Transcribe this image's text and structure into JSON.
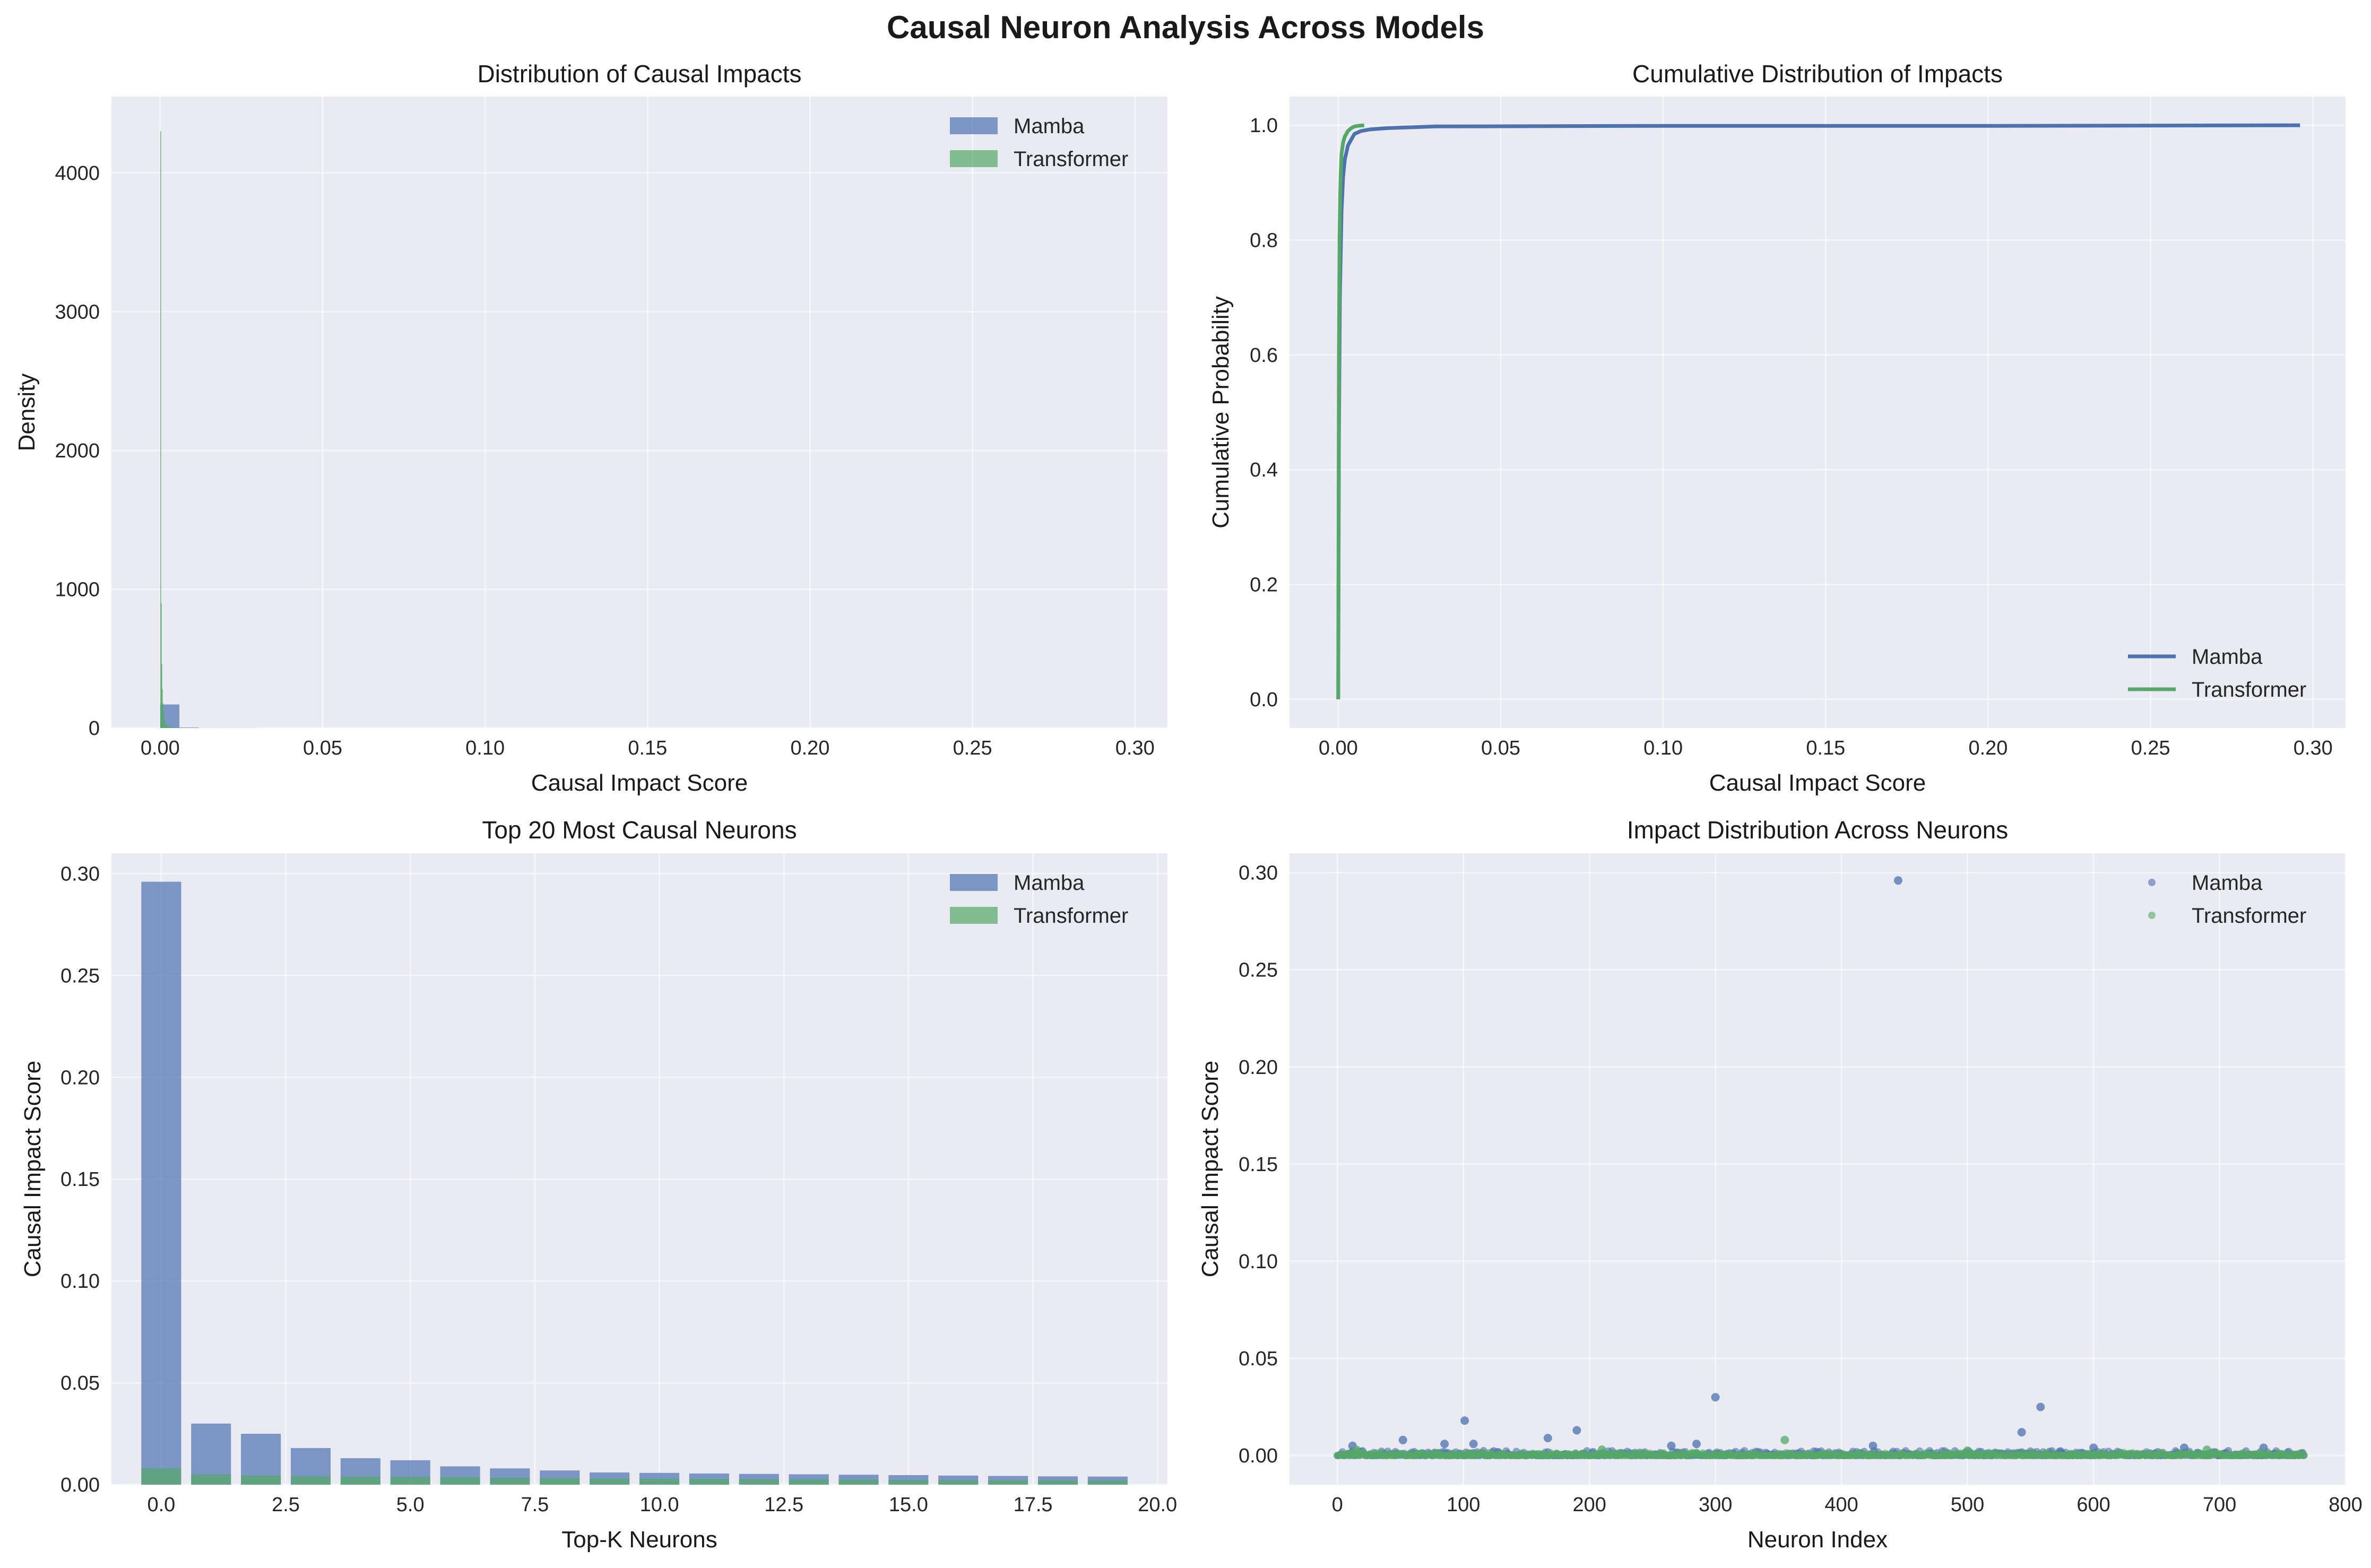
{
  "figure": {
    "title": "Causal Neuron Analysis Across Models"
  },
  "colors": {
    "mamba": "#4c72b0",
    "transformer": "#55a868",
    "plot_bg": "#eaeaf2"
  },
  "chart_data": [
    {
      "id": "hist",
      "type": "bar",
      "title": "Distribution of Causal Impacts",
      "xlabel": "Causal Impact Score",
      "ylabel": "Density",
      "xlim": [
        -0.015,
        0.31
      ],
      "ylim": [
        0,
        4550
      ],
      "xticks": [
        0.0,
        0.05,
        0.1,
        0.15,
        0.2,
        0.25,
        0.3
      ],
      "xtick_labels": [
        "0.00",
        "0.05",
        "0.10",
        "0.15",
        "0.20",
        "0.25",
        "0.30"
      ],
      "yticks": [
        0,
        1000,
        2000,
        3000,
        4000
      ],
      "ytick_labels": [
        "0",
        "1000",
        "2000",
        "3000",
        "4000"
      ],
      "grid": true,
      "legend": "top-right",
      "series": [
        {
          "name": "Mamba",
          "color": "#4c72b0",
          "bin_edges": [
            0.0,
            0.00592,
            0.01184,
            0.01776,
            0.02368,
            0.0296
          ],
          "values": [
            170,
            4,
            1,
            0.5,
            1
          ]
        },
        {
          "name": "Transformer",
          "color": "#55a868",
          "bin_edges": [
            0.0,
            0.00016,
            0.00032,
            0.00048,
            0.00064,
            0.0008,
            0.001,
            0.0012,
            0.0016,
            0.0024,
            0.004,
            0.008
          ],
          "values": [
            4300,
            900,
            460,
            280,
            180,
            120,
            80,
            50,
            25,
            10,
            3
          ]
        }
      ]
    },
    {
      "id": "cdf",
      "type": "line",
      "title": "Cumulative Distribution of Impacts",
      "xlabel": "Causal Impact Score",
      "ylabel": "Cumulative Probability",
      "xlim": [
        -0.015,
        0.31
      ],
      "ylim": [
        -0.05,
        1.05
      ],
      "xticks": [
        0.0,
        0.05,
        0.1,
        0.15,
        0.2,
        0.25,
        0.3
      ],
      "xtick_labels": [
        "0.00",
        "0.05",
        "0.10",
        "0.15",
        "0.20",
        "0.25",
        "0.30"
      ],
      "yticks": [
        0.0,
        0.2,
        0.4,
        0.6,
        0.8,
        1.0
      ],
      "ytick_labels": [
        "0.0",
        "0.2",
        "0.4",
        "0.6",
        "0.8",
        "1.0"
      ],
      "grid": true,
      "legend": "bottom-right",
      "series": [
        {
          "name": "Mamba",
          "color": "#4c72b0",
          "x": [
            0.0,
            0.0002,
            0.0005,
            0.001,
            0.0015,
            0.002,
            0.003,
            0.004,
            0.005,
            0.007,
            0.01,
            0.015,
            0.02,
            0.03,
            0.1,
            0.2,
            0.296
          ],
          "y": [
            0.0,
            0.45,
            0.7,
            0.85,
            0.91,
            0.94,
            0.965,
            0.975,
            0.985,
            0.99,
            0.993,
            0.995,
            0.996,
            0.998,
            0.999,
            0.999,
            1.0
          ]
        },
        {
          "name": "Transformer",
          "color": "#55a868",
          "x": [
            0.0,
            0.0002,
            0.0004,
            0.0006,
            0.0008,
            0.001,
            0.0015,
            0.002,
            0.003,
            0.004,
            0.005,
            0.006,
            0.008
          ],
          "y": [
            0.0,
            0.6,
            0.8,
            0.88,
            0.92,
            0.95,
            0.97,
            0.98,
            0.99,
            0.995,
            0.998,
            0.999,
            1.0
          ]
        }
      ]
    },
    {
      "id": "topk",
      "type": "bar",
      "title": "Top 20 Most Causal Neurons",
      "xlabel": "Top-K Neurons",
      "ylabel": "Causal Impact Score",
      "xlim": [
        -1.0,
        20.2
      ],
      "ylim": [
        0,
        0.31
      ],
      "xticks": [
        0.0,
        2.5,
        5.0,
        7.5,
        10.0,
        12.5,
        15.0,
        17.5,
        20.0
      ],
      "xtick_labels": [
        "0.0",
        "2.5",
        "5.0",
        "7.5",
        "10.0",
        "12.5",
        "15.0",
        "17.5",
        "20.0"
      ],
      "yticks": [
        0.0,
        0.05,
        0.1,
        0.15,
        0.2,
        0.25,
        0.3
      ],
      "ytick_labels": [
        "0.00",
        "0.05",
        "0.10",
        "0.15",
        "0.20",
        "0.25",
        "0.30"
      ],
      "grid": true,
      "legend": "top-right",
      "categories": [
        0,
        1,
        2,
        3,
        4,
        5,
        6,
        7,
        8,
        9,
        10,
        11,
        12,
        13,
        14,
        15,
        16,
        17,
        18,
        19
      ],
      "series": [
        {
          "name": "Mamba",
          "color": "#4c72b0",
          "values": [
            0.296,
            0.03,
            0.025,
            0.018,
            0.013,
            0.012,
            0.009,
            0.008,
            0.007,
            0.006,
            0.0058,
            0.0055,
            0.0053,
            0.0051,
            0.0049,
            0.0047,
            0.0045,
            0.0043,
            0.0041,
            0.004
          ]
        },
        {
          "name": "Transformer",
          "color": "#55a868",
          "values": [
            0.008,
            0.005,
            0.0045,
            0.0042,
            0.004,
            0.0038,
            0.0036,
            0.0034,
            0.0032,
            0.003,
            0.0029,
            0.0028,
            0.0027,
            0.0026,
            0.0025,
            0.0024,
            0.0023,
            0.0022,
            0.0021,
            0.002
          ]
        }
      ]
    },
    {
      "id": "scatter",
      "type": "scatter",
      "title": "Impact Distribution Across Neurons",
      "xlabel": "Neuron Index",
      "ylabel": "Causal Impact Score",
      "xlim": [
        -38,
        800
      ],
      "ylim": [
        -0.015,
        0.31
      ],
      "xticks": [
        0,
        100,
        200,
        300,
        400,
        500,
        600,
        700,
        800
      ],
      "xtick_labels": [
        "0",
        "100",
        "200",
        "300",
        "400",
        "500",
        "600",
        "700",
        "800"
      ],
      "yticks": [
        0.0,
        0.05,
        0.1,
        0.15,
        0.2,
        0.25,
        0.3
      ],
      "ytick_labels": [
        "0.00",
        "0.05",
        "0.10",
        "0.15",
        "0.20",
        "0.25",
        "0.30"
      ],
      "grid": true,
      "legend": "top-right",
      "n_neurons": 768,
      "series": [
        {
          "name": "Mamba",
          "color": "#4c72b0",
          "baseline_max": 0.0025,
          "outliers": [
            [
              445,
              0.296
            ],
            [
              300,
              0.03
            ],
            [
              558,
              0.025
            ],
            [
              101,
              0.018
            ],
            [
              190,
              0.013
            ],
            [
              543,
              0.012
            ],
            [
              167,
              0.009
            ],
            [
              52,
              0.008
            ],
            [
              85,
              0.006
            ],
            [
              108,
              0.006
            ],
            [
              285,
              0.006
            ],
            [
              12,
              0.005
            ],
            [
              425,
              0.005
            ],
            [
              265,
              0.005
            ],
            [
              672,
              0.004
            ],
            [
              735,
              0.004
            ],
            [
              600,
              0.004
            ]
          ]
        },
        {
          "name": "Transformer",
          "color": "#55a868",
          "baseline_max": 0.0015,
          "outliers": [
            [
              355,
              0.008
            ],
            [
              15,
              0.003
            ],
            [
              690,
              0.003
            ],
            [
              210,
              0.003
            ],
            [
              500,
              0.0025
            ]
          ]
        }
      ]
    }
  ]
}
